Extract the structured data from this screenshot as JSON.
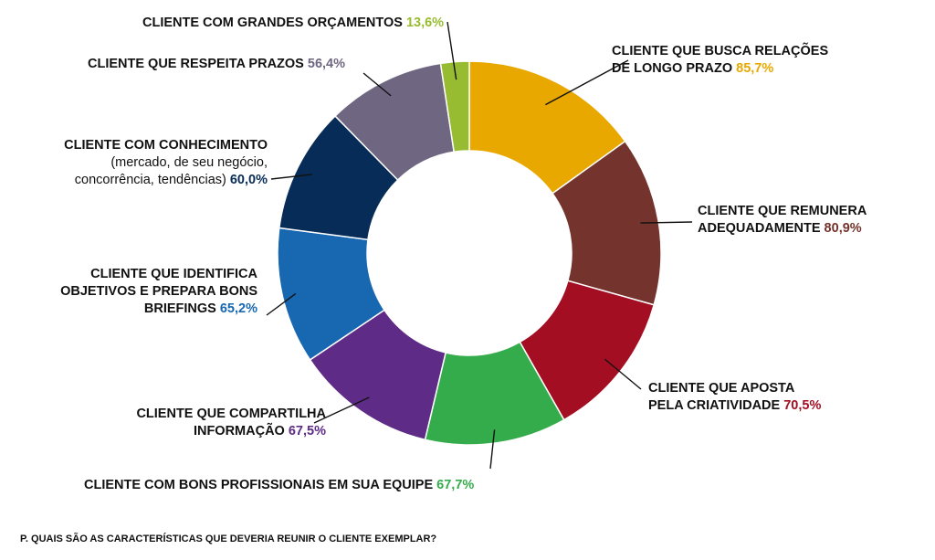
{
  "chart_data": {
    "type": "donut",
    "series": [
      {
        "name_lines": [
          "CLIENTE QUE BUSCA RELAÇÕES",
          "DE LONGO PRAZO"
        ],
        "value": 85.7,
        "value_label": "85,7%",
        "color": "#E8A800"
      },
      {
        "name_lines": [
          "CLIENTE QUE REMUNERA",
          "ADEQUADAMENTE"
        ],
        "value": 80.9,
        "value_label": "80,9%",
        "color": "#74332C"
      },
      {
        "name_lines": [
          "CLIENTE QUE APOSTA",
          "PELA CRIATIVIDADE"
        ],
        "value": 70.5,
        "value_label": "70,5%",
        "color": "#A30E22"
      },
      {
        "name_lines": [
          "CLIENTE COM BONS PROFISSIONAIS EM SUA EQUIPE"
        ],
        "value": 67.7,
        "value_label": "67,7%",
        "color": "#35AC4B"
      },
      {
        "name_lines": [
          "CLIENTE QUE COMPARTILHA",
          "INFORMAÇÃO"
        ],
        "value": 67.5,
        "value_label": "67,5%",
        "color": "#5E2B87"
      },
      {
        "name_lines": [
          "CLIENTE QUE IDENTIFICA",
          "OBJETIVOS E PREPARA BONS",
          "BRIEFINGS"
        ],
        "value": 65.2,
        "value_label": "65,2%",
        "color": "#1767B1"
      },
      {
        "name_lines": [
          "CLIENTE COM CONHECIMENTO",
          "(mercado, de seu negócio,",
          "concorrência, tendências)"
        ],
        "value": 60.0,
        "value_label": "60,0%",
        "color": "#072C57"
      },
      {
        "name_lines": [
          "CLIENTE QUE RESPEITA PRAZOS"
        ],
        "value": 56.4,
        "value_label": "56,4%",
        "color": "#6F6781"
      },
      {
        "name_lines": [
          "CLIENTE COM GRANDES ORÇAMENTOS"
        ],
        "value": 13.6,
        "value_label": "13,6%",
        "color": "#98BC31"
      }
    ]
  },
  "footer": {
    "question": "P. QUAIS SÃO AS CARACTERÍSTICAS QUE DEVERIA REUNIR O CLIENTE EXEMPLAR?"
  }
}
